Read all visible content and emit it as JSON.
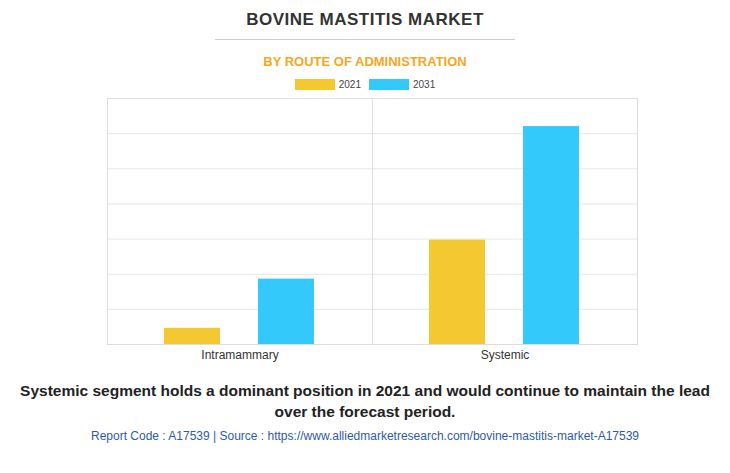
{
  "chart_data": {
    "type": "bar",
    "title": "BOVINE MASTITIS MARKET",
    "subtitle": "BY ROUTE OF ADMINISTRATION",
    "categories": [
      "Intramammary",
      "Systemic"
    ],
    "series": [
      {
        "name": "2021",
        "color": "#f4c830",
        "values": [
          0.46,
          2.97
        ]
      },
      {
        "name": "2031",
        "color": "#33c9fb",
        "values": [
          1.86,
          6.2
        ]
      }
    ],
    "ylim": [
      0,
      7
    ],
    "yticks": [
      0,
      1,
      2,
      3,
      4,
      5,
      6,
      7
    ],
    "grid": true,
    "legend": "top",
    "tick_labels": "x",
    "caption": "Systemic segment holds a dominant position in 2021 and would continue to maintain the lead over the forecast period.",
    "footer": "Report Code : A17539  |  Source : https://www.alliedmarketresearch.com/bovine-mastitis-market-A17539"
  }
}
